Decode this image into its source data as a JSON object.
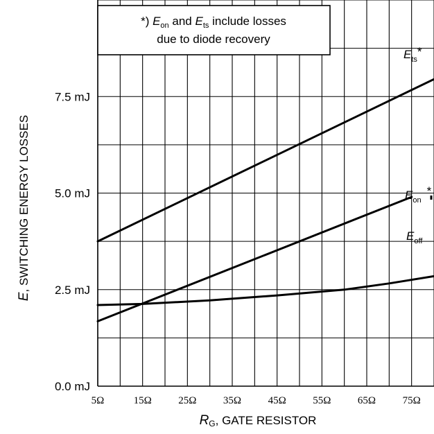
{
  "chart_data": {
    "type": "line",
    "x": [
      5,
      80
    ],
    "series": [
      {
        "name": "E",
        "sub": "ts",
        "suffix": "*",
        "x": [
          5,
          80
        ],
        "values": [
          3.75,
          7.95
        ]
      },
      {
        "name": "E",
        "sub": "on",
        "suffix": "*",
        "x": [
          5,
          75
        ],
        "values": [
          1.68,
          4.9
        ]
      },
      {
        "name": "E",
        "sub": "off",
        "suffix": "",
        "x": [
          5,
          15,
          30,
          45,
          60,
          70,
          80
        ],
        "values": [
          2.1,
          2.13,
          2.22,
          2.35,
          2.5,
          2.66,
          2.85
        ]
      }
    ],
    "xlim": [
      5,
      80
    ],
    "ylim": [
      0,
      10
    ],
    "xticks": [
      5,
      15,
      25,
      35,
      45,
      55,
      65,
      75
    ],
    "xtick_labels": [
      "5Ω",
      "15Ω",
      "25Ω",
      "35Ω",
      "45Ω",
      "55Ω",
      "65Ω",
      "75Ω"
    ],
    "yticks": [
      0,
      2.5,
      5,
      7.5
    ],
    "ytick_labels": [
      "0.0 mJ",
      "2.5 mJ",
      "5.0 mJ",
      "7.5 mJ"
    ],
    "xlabel": {
      "sym": "R",
      "sub": "G",
      "rest": ", GATE RESISTOR"
    },
    "ylabel": {
      "sym": "E",
      "rest": ", SWITCHING ENERGY LOSSES"
    },
    "note": {
      "prefix": "*) ",
      "e1": "E",
      "e1_sub": "on",
      "mid": " and ",
      "e2": "E",
      "e2_sub": "ts",
      "end": " include losses",
      "line2": "due to diode recovery"
    },
    "grid": true
  }
}
